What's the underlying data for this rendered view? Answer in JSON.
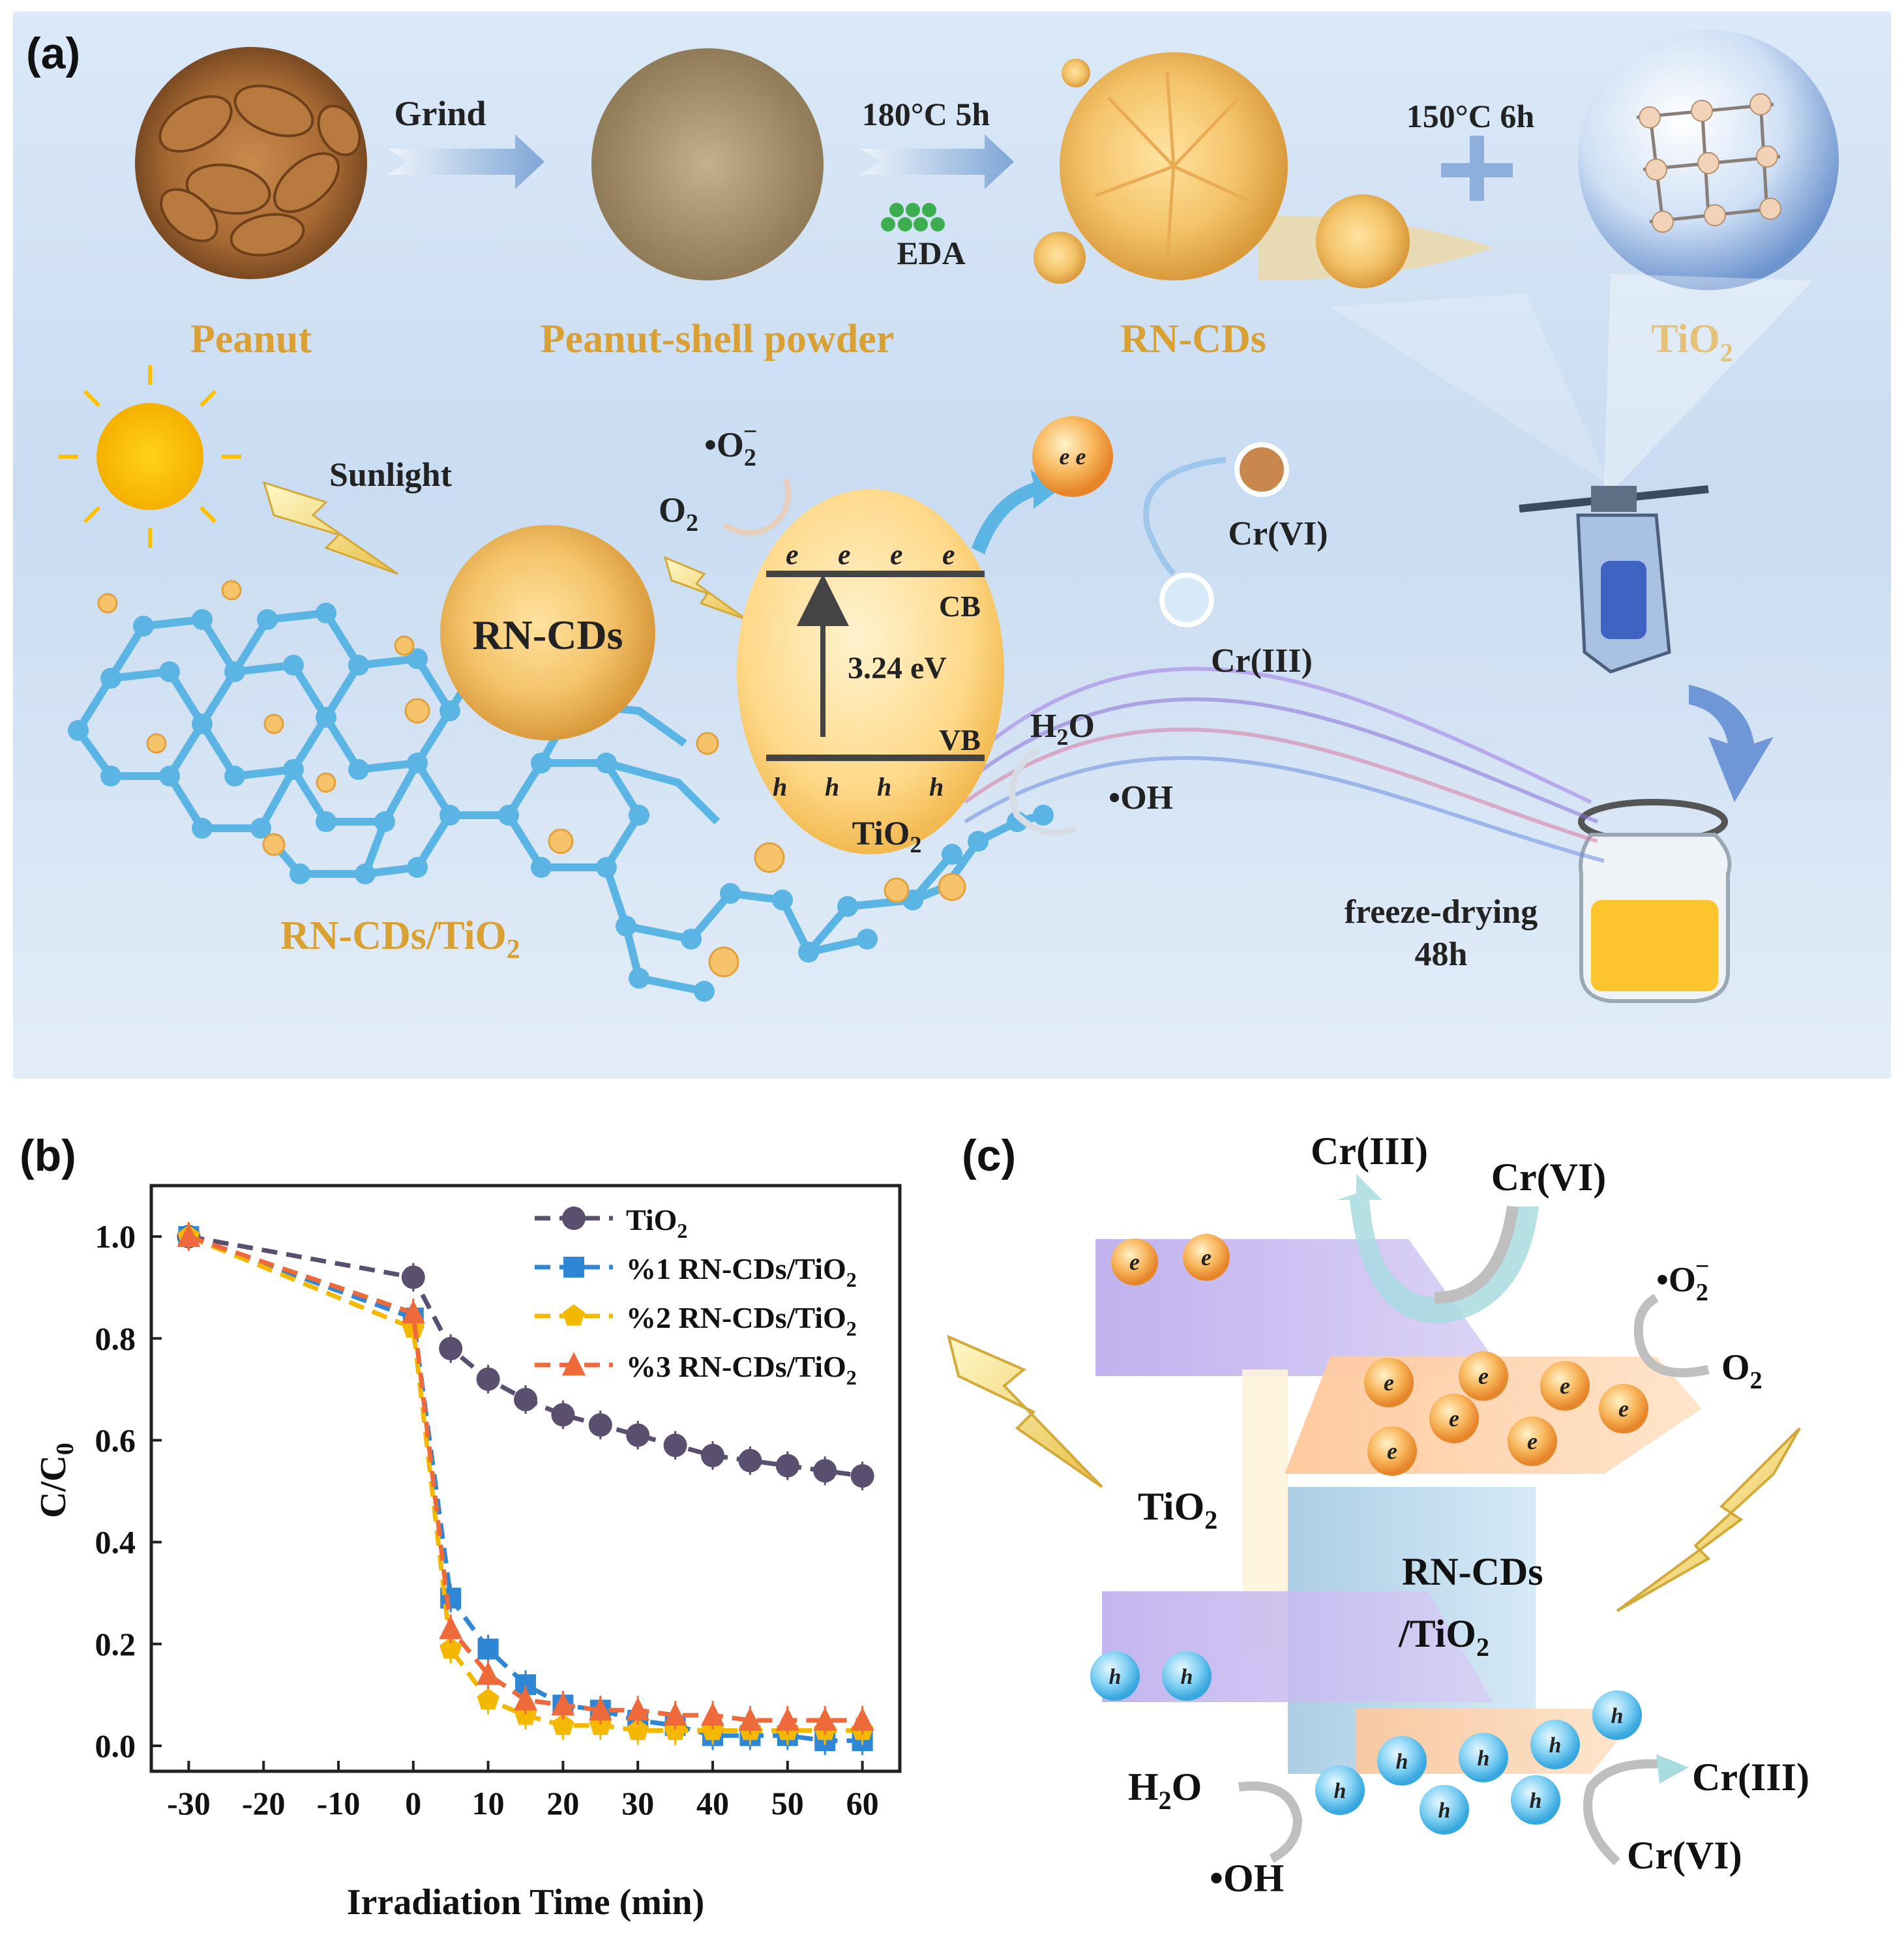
{
  "panel_a": {
    "label": "(a)",
    "peanut": "Peanut",
    "grind": "Grind",
    "powder": "Peanut-shell powder",
    "cond1": "180°C  5h",
    "eda": "EDA",
    "rncds_top": "RN-CDs",
    "cond2": "150°C  6h",
    "tio2_top": "TiO",
    "sunlight": "Sunlight",
    "o2_radical": "•O",
    "o2": "O",
    "ecb": "e",
    "cb": "CB",
    "vb": "VB",
    "gap": "3.24 eV",
    "hvb": "h",
    "tio2_egg": "TiO",
    "rncds_center": "RN-CDs",
    "ee": "e  e",
    "crvi": "Cr(VI)",
    "criii": "Cr(III)",
    "h2o": "H",
    "oh": "•OH",
    "composite": "RN-CDs/TiO",
    "freeze1": "freeze-drying",
    "freeze2": "48h",
    "colors": {
      "panel_bg": "#d6e6f6",
      "gold": "#d9a033",
      "lattice": "#5ab4e4"
    }
  },
  "panel_b": {
    "label": "(b)"
  },
  "panel_c": {
    "label": "(c)",
    "criii_top": "Cr(III)",
    "crvi_top": "Cr(VI)",
    "o2_radical": "•O",
    "o2": "O",
    "tio2": "TiO",
    "rn1": "RN-CDs",
    "rn2": "/TiO",
    "h2o": "H",
    "oh": "•OH",
    "criii_bot": "Cr(III)",
    "crvi_bot": "Cr(VI)",
    "e_label": "e",
    "h_label": "h"
  },
  "chart_data": {
    "type": "line",
    "xlabel": "Irradiation Time (min)",
    "ylabel": "C/C",
    "xlim": [
      -35,
      65
    ],
    "ylim": [
      -0.05,
      1.1
    ],
    "xticks": [
      -30,
      -20,
      -10,
      0,
      10,
      20,
      30,
      40,
      50,
      60
    ],
    "yticks": [
      0.0,
      0.2,
      0.4,
      0.6,
      0.8,
      1.0
    ],
    "legend_position": "top-right",
    "x": [
      -30,
      0,
      5,
      10,
      15,
      20,
      25,
      30,
      35,
      40,
      45,
      50,
      55,
      60
    ],
    "series": [
      {
        "name": "TiO",
        "marker": "circle",
        "color": "#5a4f6e",
        "values": [
          1.0,
          0.92,
          0.78,
          0.72,
          0.68,
          0.65,
          0.63,
          0.61,
          0.59,
          0.57,
          0.56,
          0.55,
          0.54,
          0.53
        ]
      },
      {
        "name": "%1 RN-CDs/TiO",
        "marker": "square",
        "color": "#2f86d4",
        "values": [
          1.0,
          0.84,
          0.29,
          0.19,
          0.12,
          0.08,
          0.07,
          0.05,
          0.04,
          0.02,
          0.02,
          0.02,
          0.01,
          0.01
        ]
      },
      {
        "name": "%2 RN-CDs/TiO",
        "marker": "pentagon",
        "color": "#f5b800",
        "values": [
          1.0,
          0.82,
          0.19,
          0.09,
          0.06,
          0.04,
          0.04,
          0.03,
          0.03,
          0.03,
          0.03,
          0.03,
          0.03,
          0.03
        ]
      },
      {
        "name": "%3 RN-CDs/TiO",
        "marker": "triangle",
        "color": "#ee6a3a",
        "values": [
          1.0,
          0.85,
          0.23,
          0.14,
          0.09,
          0.08,
          0.07,
          0.07,
          0.06,
          0.06,
          0.05,
          0.05,
          0.05,
          0.05
        ]
      }
    ]
  }
}
